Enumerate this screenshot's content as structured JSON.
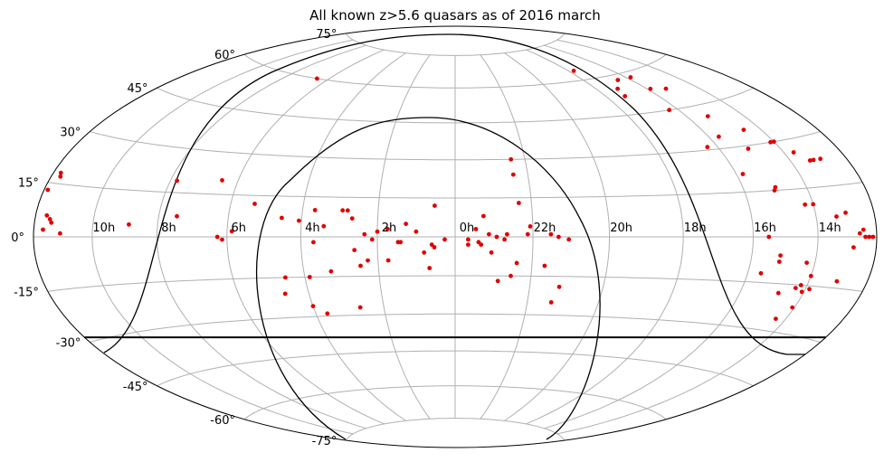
{
  "chart_data": {
    "type": "scatter",
    "projection": "aitoff-hammer",
    "title": "All known z>5.6 quasars as of 2016 march",
    "xlabel": "",
    "ylabel": "",
    "ra_tick_labels": [
      "22h",
      "20h",
      "18h",
      "16h",
      "14h",
      "10h",
      "8h",
      "6h",
      "4h",
      "2h",
      "0h"
    ],
    "ra_tick_values_h": [
      22,
      20,
      18,
      16,
      14,
      10,
      8,
      6,
      4,
      2,
      0
    ],
    "dec_tick_labels": [
      "75°",
      "60°",
      "45°",
      "30°",
      "15°",
      "0°",
      "-15°",
      "-30°",
      "-45°",
      "-60°",
      "-75°"
    ],
    "dec_tick_values": [
      75,
      60,
      45,
      30,
      15,
      0,
      -15,
      -30,
      -45,
      -60,
      -75
    ],
    "grid": true,
    "point_color": "#e00000",
    "curve_color": "#000000",
    "grid_color": "#b0b0b0",
    "dec_limit": -28.5,
    "points": [
      [
        133,
        4
      ],
      [
        117,
        19
      ],
      [
        97,
        20
      ],
      [
        80,
        12
      ],
      [
        40,
        7
      ],
      [
        55,
        10
      ],
      [
        98,
        60
      ],
      [
        171,
        4
      ],
      [
        172,
        5
      ],
      [
        166,
        1
      ],
      [
        175,
        2
      ],
      [
        174,
        6
      ],
      [
        112,
        7
      ],
      [
        94,
        0
      ],
      [
        92,
        -1
      ],
      [
        88,
        2
      ],
      [
        68,
        7
      ],
      [
        42,
        10
      ],
      [
        8,
        12
      ],
      [
        15,
        2
      ],
      [
        9,
        -3
      ],
      [
        19,
        5
      ],
      [
        30,
        2
      ],
      [
        61,
        6
      ],
      [
        22,
        -2
      ],
      [
        4,
        -1
      ],
      [
        35,
        1
      ],
      [
        44,
        10
      ],
      [
        51,
        4
      ],
      [
        55,
        -2
      ],
      [
        21,
        -2
      ],
      [
        26,
        3
      ],
      [
        32,
        -1
      ],
      [
        34,
        -9
      ],
      [
        58,
        -15
      ],
      [
        70,
        -21
      ],
      [
        12,
        -6
      ],
      [
        39,
        -5
      ],
      [
        60,
        -26
      ],
      [
        49,
        -13
      ],
      [
        68,
        -15
      ],
      [
        26,
        -9
      ],
      [
        40,
        -27
      ],
      [
        55,
        -29
      ],
      [
        10,
        -12
      ],
      [
        37,
        -11
      ],
      [
        8,
        -4
      ],
      [
        -11,
        8
      ],
      [
        -25,
        13
      ],
      [
        -9,
        -2
      ],
      [
        -5,
        -1
      ],
      [
        -13,
        1
      ],
      [
        -16,
        0
      ],
      [
        -19,
        -1
      ],
      [
        -28,
        1
      ],
      [
        -20,
        1
      ],
      [
        -24,
        -10
      ],
      [
        -14,
        -6
      ],
      [
        -29,
        4
      ],
      [
        -17,
        -17
      ],
      [
        -40,
        -25
      ],
      [
        -42,
        -19
      ],
      [
        -37,
        1
      ],
      [
        -44,
        -1
      ],
      [
        -10,
        -3
      ],
      [
        -35,
        -11
      ],
      [
        -22,
        -15
      ],
      [
        -24,
        24
      ],
      [
        -24,
        30
      ],
      [
        -40,
        0
      ],
      [
        -8,
        3
      ],
      [
        -5,
        -3
      ],
      [
        -94,
        64
      ],
      [
        -115,
        45
      ],
      [
        -101,
        52
      ],
      [
        -103,
        55
      ],
      [
        -112,
        58
      ],
      [
        -123,
        58
      ],
      [
        -122,
        53
      ],
      [
        -131,
        52
      ],
      [
        -141,
        35
      ],
      [
        -131,
        41
      ],
      [
        -134,
        29
      ],
      [
        -115,
        31
      ],
      [
        -125,
        34
      ],
      [
        -148,
        30
      ],
      [
        -150,
        30
      ],
      [
        -123,
        21
      ],
      [
        -155,
        26
      ],
      [
        -160,
        23
      ],
      [
        -166,
        23
      ],
      [
        -162,
        23
      ],
      [
        -150,
        10
      ],
      [
        -165,
        7
      ],
      [
        -135,
        16
      ],
      [
        -134,
        15
      ],
      [
        -146,
        10
      ],
      [
        -160,
        6
      ],
      [
        -173,
        2
      ],
      [
        -176,
        0
      ],
      [
        -174,
        0
      ],
      [
        -171,
        1
      ],
      [
        -178,
        0
      ],
      [
        -168,
        -3
      ],
      [
        -164,
        -13
      ],
      [
        -133,
        -6
      ],
      [
        -133,
        -8
      ],
      [
        -127,
        0
      ],
      [
        -146,
        -8
      ],
      [
        -150,
        -12
      ],
      [
        -147,
        -15
      ],
      [
        -152,
        -16
      ],
      [
        -149,
        -17
      ],
      [
        -145,
        -16
      ],
      [
        -149,
        -22
      ],
      [
        -145,
        -26
      ],
      [
        -138,
        -18
      ],
      [
        -126,
        -12
      ],
      [
        175,
        17
      ],
      [
        176,
        18
      ],
      [
        178,
        13
      ]
    ]
  }
}
